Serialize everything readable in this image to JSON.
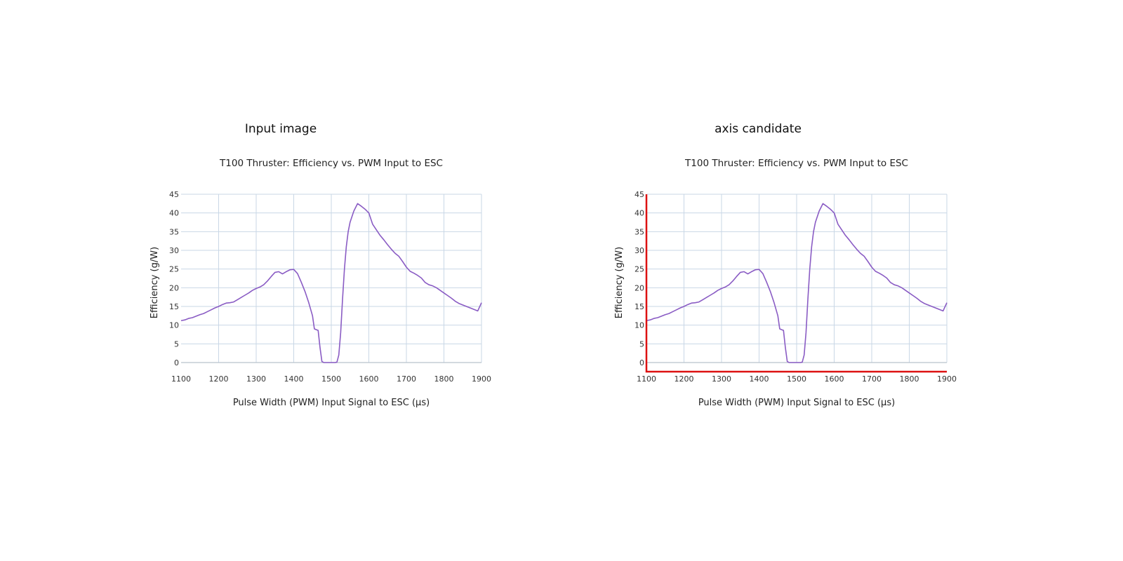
{
  "panels": [
    {
      "heading": "Input image",
      "highlight_axes": false
    },
    {
      "heading": "axis candidate",
      "highlight_axes": true
    }
  ],
  "colors": {
    "series": "#8a5cc4",
    "grid": "#c9d7e6",
    "axis_highlight": "#dd1111"
  },
  "chart_data": {
    "type": "line",
    "title": "T100 Thruster: Efficiency vs. PWM Input to ESC",
    "xlabel": "Pulse Width (PWM) Input Signal to ESC (μs)",
    "ylabel": "Efficiency (g/W)",
    "xlim": [
      1100,
      1900
    ],
    "ylim": [
      0,
      45
    ],
    "x_ticks": [
      1100,
      1200,
      1300,
      1400,
      1500,
      1600,
      1700,
      1800,
      1900
    ],
    "y_ticks": [
      0,
      5,
      10,
      15,
      20,
      25,
      30,
      35,
      40,
      45
    ],
    "grid": true,
    "series": [
      {
        "x": [
          1100,
          1110,
          1120,
          1130,
          1140,
          1150,
          1160,
          1170,
          1180,
          1190,
          1200,
          1210,
          1220,
          1230,
          1240,
          1250,
          1260,
          1270,
          1280,
          1290,
          1300,
          1310,
          1320,
          1330,
          1340,
          1350,
          1360,
          1370,
          1380,
          1390,
          1400,
          1410,
          1420,
          1430,
          1440,
          1450,
          1455,
          1460,
          1465,
          1470,
          1475,
          1480,
          1490,
          1500,
          1510,
          1515,
          1520,
          1525,
          1530,
          1535,
          1540,
          1545,
          1550,
          1555,
          1560,
          1570,
          1580,
          1590,
          1600,
          1610,
          1620,
          1630,
          1640,
          1650,
          1660,
          1670,
          1680,
          1690,
          1700,
          1710,
          1720,
          1730,
          1740,
          1750,
          1760,
          1770,
          1780,
          1790,
          1800,
          1810,
          1820,
          1830,
          1840,
          1850,
          1860,
          1870,
          1880,
          1890,
          1900
        ],
        "y": [
          11.2,
          11.4,
          11.8,
          12.0,
          12.4,
          12.8,
          13.1,
          13.6,
          14.1,
          14.6,
          15.0,
          15.5,
          15.9,
          16.0,
          16.2,
          16.8,
          17.4,
          18.0,
          18.6,
          19.3,
          19.8,
          20.2,
          20.8,
          21.8,
          23.0,
          24.1,
          24.3,
          23.7,
          24.3,
          24.8,
          24.9,
          23.8,
          21.5,
          19.0,
          16.0,
          12.5,
          9.0,
          8.8,
          8.6,
          4.0,
          0.3,
          0.0,
          0.0,
          0.0,
          0.0,
          0.1,
          2.0,
          8.0,
          17.0,
          25.0,
          31.0,
          35.0,
          37.5,
          39.0,
          40.5,
          42.5,
          41.8,
          41.0,
          40.0,
          37.0,
          35.5,
          34.0,
          32.8,
          31.5,
          30.3,
          29.2,
          28.4,
          27.0,
          25.5,
          24.4,
          23.9,
          23.3,
          22.6,
          21.4,
          20.8,
          20.5,
          20.0,
          19.3,
          18.6,
          17.9,
          17.2,
          16.4,
          15.8,
          15.4,
          15.0,
          14.6,
          14.2,
          13.8,
          16.0
        ]
      }
    ]
  }
}
